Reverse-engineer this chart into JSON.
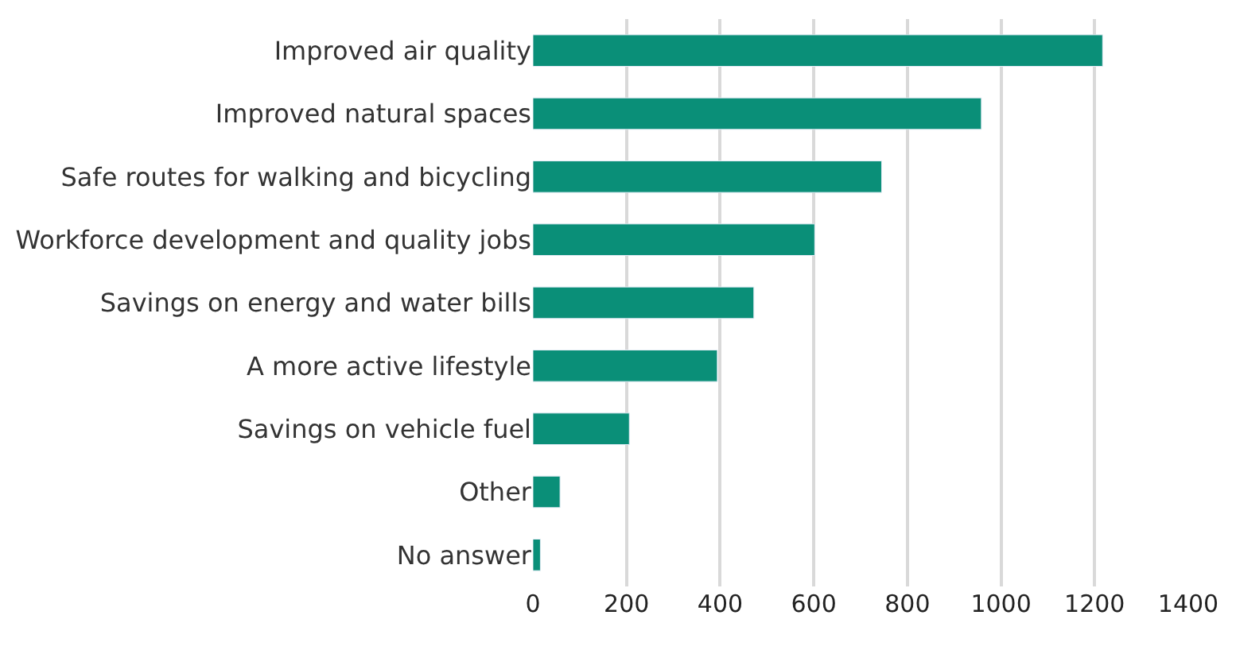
{
  "chart_data": {
    "type": "bar",
    "orientation": "horizontal",
    "categories": [
      "Improved air quality",
      "Improved natural spaces",
      "Safe routes for walking and bicycling",
      "Workforce development and quality jobs",
      "Savings on energy and water bills",
      "A more active lifestyle",
      "Savings on vehicle fuel",
      "Other",
      "No answer"
    ],
    "values": [
      1217,
      958,
      745,
      602,
      472,
      394,
      206,
      58,
      16
    ],
    "color": "#0a8f78",
    "xlim": [
      0,
      1400
    ],
    "xticks": [
      0,
      200,
      400,
      600,
      800,
      1000,
      1200,
      1400
    ],
    "grid": "x"
  }
}
